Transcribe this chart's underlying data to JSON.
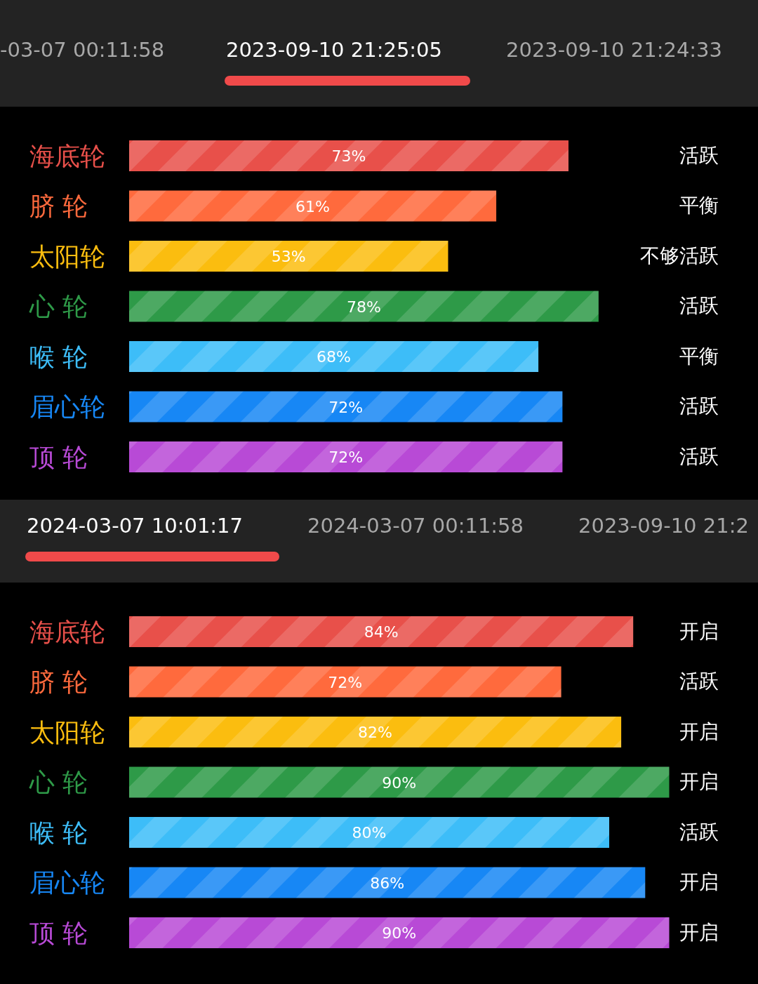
{
  "chart_data": [
    {
      "type": "bar",
      "orientation": "horizontal",
      "title": "2023-09-10 21:25:05",
      "categories": [
        "海底轮",
        "脐 轮",
        "太阳轮",
        "心 轮",
        "喉 轮",
        "眉心轮",
        "顶 轮"
      ],
      "values": [
        73,
        61,
        53,
        78,
        68,
        72,
        72
      ],
      "value_labels": [
        "73%",
        "61%",
        "53%",
        "78%",
        "68%",
        "72%",
        "72%"
      ],
      "colors": [
        "#e8504a",
        "#ff6a3d",
        "#fbbd0f",
        "#2e9a48",
        "#3dbdf8",
        "#1787f5",
        "#b84ad6"
      ],
      "tick_labels": false,
      "grid": false,
      "legend": false,
      "annotations": [
        "-03-07 00:11:58",
        "2023-09-10 21:24:33",
        "活跃",
        "平衡",
        "不够活跃",
        "活跃",
        "平衡",
        "活跃",
        "活跃"
      ]
    },
    {
      "type": "bar",
      "orientation": "horizontal",
      "title": "2024-03-07 10:01:17",
      "categories": [
        "海底轮",
        "脐 轮",
        "太阳轮",
        "心 轮",
        "喉 轮",
        "眉心轮",
        "顶 轮"
      ],
      "values": [
        84,
        72,
        82,
        90,
        80,
        86,
        90
      ],
      "value_labels": [
        "84%",
        "72%",
        "82%",
        "90%",
        "80%",
        "86%",
        "90%"
      ],
      "colors": [
        "#e8504a",
        "#ff6a3d",
        "#fbbd0f",
        "#2e9a48",
        "#3dbdf8",
        "#1787f5",
        "#b84ad6"
      ],
      "tick_labels": false,
      "grid": false,
      "legend": false,
      "annotations": [
        "2024-03-07 00:11:58",
        "2023-09-10 21:2",
        "开启",
        "活跃",
        "开启",
        "开启",
        "活跃",
        "开启",
        "开启"
      ]
    }
  ]
}
